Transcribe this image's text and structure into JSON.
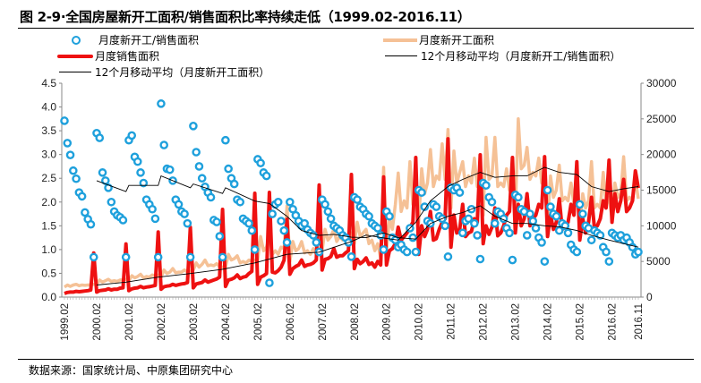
{
  "chart_data": {
    "type": "line",
    "title": "图 2-9·全国房屋新开工面积/销售面积比率持续走低（1999.02-2016.11）",
    "source": "数据来源：国家统计局、中原集团研究中心",
    "left_axis": {
      "range": [
        0,
        4.5
      ],
      "ticks": [
        "0.0",
        "0.5",
        "1.0",
        "1.5",
        "2.0",
        "2.5",
        "3.0",
        "3.5",
        "4.0",
        "4.5"
      ]
    },
    "right_axis": {
      "range": [
        0,
        30000
      ],
      "ticks": [
        "0",
        "5000",
        "10000",
        "15000",
        "20000",
        "25000",
        "30000"
      ]
    },
    "x_tick_labels": [
      "1999.02",
      "2000.02",
      "2001.02",
      "2002.02",
      "2003.02",
      "2004.02",
      "2005.02",
      "2006.02",
      "2007.02",
      "2008.02",
      "2009.02",
      "2010.02",
      "2011.02",
      "2012.02",
      "2013.02",
      "2014.02",
      "2015.02",
      "2016.02",
      "2016.11"
    ],
    "grid": false,
    "legend_placement": "top",
    "colors": {
      "ratio": "#1ea0dc",
      "starts": "#f5c196",
      "sales": "#ee1111",
      "ma": "#000000"
    },
    "months": [
      2,
      3,
      4,
      5,
      6,
      7,
      8,
      9,
      10,
      11,
      12
    ],
    "series": [
      {
        "key": "ratio",
        "name": "月度新开工/销售面积",
        "axis": "left",
        "style": "marker-circle"
      },
      {
        "key": "starts",
        "name": "月度新开工面积",
        "axis": "right",
        "style": "line"
      },
      {
        "key": "sales",
        "name": "月度销售面积",
        "axis": "right",
        "style": "line"
      },
      {
        "key": "ma_ratio",
        "name": "12个月移动平均（月度新开工/销售面积）",
        "axis": "left",
        "style": "thin-line"
      },
      {
        "key": "ma_starts",
        "name": "12个月移动平均（月度新开工面积）",
        "axis": "right",
        "style": "thin-line"
      }
    ],
    "monthly": [
      {
        "year": 1999,
        "ratio": [
          3.71,
          3.24,
          2.99,
          2.66,
          2.49,
          2.2,
          2.12,
          1.78,
          1.64,
          1.53,
          0.84
        ],
        "starts": [
          1400,
          1700,
          1500,
          1700,
          1800,
          1600,
          1700,
          1650,
          1700,
          1750,
          1800
        ],
        "sales": [
          500,
          650,
          700,
          700,
          800,
          750,
          800,
          850,
          900,
          1000,
          6190
        ]
      },
      {
        "year": 2000,
        "ratio": [
          3.45,
          3.35,
          2.62,
          2.45,
          2.3,
          2.0,
          1.8,
          1.72,
          1.68,
          1.62,
          0.84
        ],
        "starts": [
          1800,
          2400,
          2100,
          2300,
          2500,
          2200,
          2300,
          2200,
          2400,
          2400,
          2500
        ],
        "sales": [
          700,
          900,
          950,
          1000,
          1150,
          1000,
          1100,
          1100,
          1250,
          1300,
          7450
        ]
      },
      {
        "year": 2001,
        "ratio": [
          3.3,
          3.4,
          2.95,
          2.85,
          2.62,
          2.4,
          2.05,
          1.95,
          1.85,
          1.65,
          0.84
        ],
        "starts": [
          2300,
          3000,
          2700,
          2900,
          3200,
          2700,
          2900,
          2800,
          3100,
          3000,
          3100
        ],
        "sales": [
          900,
          1150,
          1250,
          1300,
          1500,
          1300,
          1400,
          1450,
          1550,
          1650,
          9120
        ]
      },
      {
        "year": 2002,
        "ratio": [
          4.07,
          3.2,
          2.7,
          2.68,
          2.45,
          2.05,
          1.95,
          1.8,
          1.75,
          1.55,
          0.84
        ],
        "starts": [
          2800,
          3800,
          3300,
          3500,
          4000,
          3400,
          3500,
          3500,
          3800,
          3500,
          3600
        ],
        "sales": [
          1100,
          1450,
          1550,
          1600,
          1800,
          1650,
          1750,
          1850,
          1900,
          2050,
          9790
        ]
      },
      {
        "year": 2003,
        "ratio": [
          3.6,
          3.05,
          2.75,
          2.5,
          2.32,
          2.2,
          2.1,
          1.62,
          1.58,
          1.28,
          0.84
        ],
        "starts": [
          3800,
          4800,
          4200,
          4600,
          5200,
          4400,
          4500,
          4400,
          4700,
          4300,
          4200
        ],
        "sales": [
          1300,
          1850,
          1950,
          2050,
          2400,
          2100,
          2250,
          2400,
          2550,
          2800,
          12300
        ]
      },
      {
        "year": 2004,
        "ratio": [
          3.3,
          2.7,
          2.5,
          2.38,
          2.05,
          2.0,
          1.65,
          1.6,
          1.55,
          1.4,
          1.0
        ],
        "starts": [
          4200,
          6000,
          5200,
          5400,
          5800,
          4800,
          5000,
          4800,
          5200,
          5000,
          5200
        ],
        "sales": [
          1500,
          2400,
          2500,
          2700,
          3100,
          2600,
          2800,
          2900,
          3300,
          3600,
          14560
        ]
      },
      {
        "year": 2005,
        "ratio": [
          2.9,
          2.82,
          2.62,
          2.55,
          0.3,
          1.75,
          1.95,
          2.0,
          1.6,
          1.4,
          1.15
        ],
        "starts": [
          5200,
          8500,
          6500,
          7000,
          8500,
          6000,
          6500,
          6000,
          7000,
          6800,
          12800
        ],
        "sales": [
          1800,
          2800,
          3000,
          3300,
          14690,
          3500,
          3400,
          3700,
          4200,
          5200,
          10920
        ]
      },
      {
        "year": 2006,
        "ratio": [
          2.0,
          1.85,
          1.72,
          1.6,
          1.5,
          1.55,
          1.42,
          1.35,
          1.3,
          1.15,
          0.95
        ],
        "starts": [
          5000,
          7800,
          6500,
          6800,
          7800,
          6200,
          6500,
          6000,
          6800,
          6000,
          6500
        ],
        "sales": [
          3200,
          4000,
          4300,
          4500,
          5200,
          4300,
          4500,
          4600,
          4800,
          5200,
          15730
        ]
      },
      {
        "year": 2007,
        "ratio": [
          2.05,
          1.95,
          1.8,
          1.65,
          1.5,
          1.45,
          1.4,
          1.3,
          1.25,
          1.15,
          0.85
        ],
        "starts": [
          6500,
          9500,
          8000,
          8500,
          9500,
          7800,
          8500,
          8000,
          8800,
          7500,
          9000
        ],
        "sales": [
          3800,
          5300,
          5400,
          5700,
          6800,
          5600,
          5800,
          5800,
          6200,
          6500,
          17200
        ]
      },
      {
        "year": 2008,
        "ratio": [
          2.1,
          2.05,
          1.9,
          1.85,
          1.75,
          1.7,
          1.55,
          1.5,
          1.45,
          1.3,
          1.0
        ],
        "starts": [
          7500,
          10500,
          8500,
          9000,
          9500,
          7500,
          8000,
          6500,
          7500,
          5500,
          18200
        ],
        "sales": [
          4000,
          5300,
          4700,
          5000,
          5500,
          4600,
          4800,
          4200,
          5000,
          4500,
          16860
        ]
      },
      {
        "year": 2009,
        "ratio": [
          1.8,
          1.7,
          1.25,
          1.2,
          1.05,
          1.1,
          1.0,
          0.95,
          1.45,
          1.25,
          0.95
        ],
        "starts": [
          6500,
          11000,
          9500,
          13000,
          17400,
          12000,
          13500,
          12500,
          19000,
          13000,
          17500
        ],
        "sales": [
          4500,
          6500,
          6800,
          7500,
          9800,
          8000,
          8500,
          9000,
          9800,
          10500,
          19580
        ]
      },
      {
        "year": 2010,
        "ratio": [
          2.25,
          2.2,
          1.9,
          1.6,
          1.55,
          1.95,
          1.9,
          1.7,
          1.65,
          1.5,
          0.85
        ],
        "starts": [
          10500,
          18000,
          14500,
          16000,
          20700,
          15500,
          17000,
          16500,
          21500,
          16500,
          23500
        ],
        "sales": [
          6000,
          10000,
          8500,
          9500,
          12000,
          8000,
          8200,
          9500,
          10500,
          11000,
          22200
        ]
      },
      {
        "year": 2011,
        "ratio": [
          2.3,
          2.25,
          2.3,
          2.2,
          1.35,
          1.6,
          1.65,
          1.85,
          1.55,
          1.3,
          0.8
        ],
        "starts": [
          12500,
          20500,
          16000,
          17500,
          19000,
          15500,
          17000,
          16000,
          19500,
          15500,
          18500
        ],
        "sales": [
          7000,
          11500,
          9000,
          9500,
          13000,
          8500,
          9000,
          9200,
          11000,
          10500,
          19960
        ]
      },
      {
        "year": 2012,
        "ratio": [
          2.4,
          2.35,
          2.1,
          2.0,
          1.55,
          1.8,
          1.75,
          1.65,
          1.45,
          1.35,
          0.78
        ],
        "starts": [
          11500,
          22400,
          16500,
          17000,
          22400,
          15500,
          16000,
          15500,
          18000,
          15000,
          17500
        ],
        "sales": [
          7500,
          10000,
          8800,
          9800,
          12500,
          8600,
          9000,
          10000,
          11500,
          12000,
          19580
        ]
      },
      {
        "year": 2013,
        "ratio": [
          2.15,
          2.1,
          1.85,
          1.8,
          1.3,
          1.75,
          1.6,
          1.45,
          1.25,
          1.15,
          0.75
        ],
        "starts": [
          12000,
          25000,
          18000,
          18500,
          21000,
          16500,
          17500,
          17000,
          19500,
          16000,
          17000
        ],
        "sales": [
          9000,
          13000,
          10000,
          11000,
          14500,
          10000,
          11000,
          11500,
          13000,
          12500,
          19700
        ]
      },
      {
        "year": 2014,
        "ratio": [
          2.25,
          1.9,
          1.75,
          1.7,
          1.4,
          1.55,
          1.5,
          1.35,
          1.1,
          1.0,
          0.95
        ],
        "starts": [
          10500,
          17000,
          14000,
          15000,
          18500,
          13500,
          14000,
          13500,
          16000,
          13000,
          14500
        ],
        "sales": [
          8500,
          11500,
          9500,
          10500,
          13800,
          9500,
          9800,
          10500,
          13000,
          11500,
          18990
        ]
      },
      {
        "year": 2015,
        "ratio": [
          1.95,
          1.75,
          1.5,
          1.45,
          1.2,
          1.4,
          1.35,
          1.3,
          1.05,
          0.95,
          0.75
        ],
        "starts": [
          10000,
          14500,
          12500,
          13500,
          19000,
          12500,
          13000,
          12500,
          17500,
          13000,
          14000
        ],
        "sales": [
          8000,
          11000,
          9000,
          10500,
          14000,
          9800,
          10000,
          11000,
          13500,
          12500,
          19200
        ]
      },
      {
        "year": 2016,
        "ratio": [
          1.35,
          1.3,
          1.25,
          1.3,
          1.2,
          1.25,
          1.15,
          1.05,
          0.9,
          0.95
        ],
        "starts": [
          11000,
          16000,
          14000,
          14500,
          19700,
          13500,
          14000,
          13500,
          16500,
          13800
        ],
        "sales": [
          10500,
          14500,
          12000,
          13500,
          16500,
          12000,
          12500,
          13500,
          17700,
          15300
        ]
      }
    ],
    "ma_ratio": [
      [
        "2000.02",
        2.45
      ],
      [
        "2000.12",
        2.22
      ],
      [
        "2001.02",
        2.35
      ],
      [
        "2001.12",
        2.35
      ],
      [
        "2002.02",
        2.55
      ],
      [
        "2002.12",
        2.3
      ],
      [
        "2003.02",
        2.38
      ],
      [
        "2003.12",
        2.18
      ],
      [
        "2004.02",
        2.3
      ],
      [
        "2004.12",
        2.02
      ],
      [
        "2005.06",
        1.97
      ],
      [
        "2005.12",
        1.7
      ],
      [
        "2006.06",
        1.4
      ],
      [
        "2006.12",
        1.3
      ],
      [
        "2007.06",
        1.32
      ],
      [
        "2007.12",
        1.26
      ],
      [
        "2008.06",
        1.25
      ],
      [
        "2008.12",
        1.35
      ],
      [
        "2009.06",
        1.25
      ],
      [
        "2009.12",
        1.22
      ],
      [
        "2010.06",
        1.55
      ],
      [
        "2010.12",
        1.7
      ],
      [
        "2011.06",
        1.78
      ],
      [
        "2011.12",
        1.92
      ],
      [
        "2012.06",
        1.7
      ],
      [
        "2012.12",
        1.55
      ],
      [
        "2013.06",
        1.55
      ],
      [
        "2013.12",
        1.5
      ],
      [
        "2014.06",
        1.48
      ],
      [
        "2014.12",
        1.4
      ],
      [
        "2015.06",
        1.3
      ],
      [
        "2015.12",
        1.2
      ],
      [
        "2016.11",
        1.05
      ]
    ],
    "ma_starts": [
      [
        "2000.02",
        1700
      ],
      [
        "2000.12",
        2100
      ],
      [
        "2001.12",
        2800
      ],
      [
        "2002.12",
        3300
      ],
      [
        "2003.12",
        3900
      ],
      [
        "2004.12",
        4800
      ],
      [
        "2005.12",
        6000
      ],
      [
        "2006.12",
        6300
      ],
      [
        "2007.12",
        7800
      ],
      [
        "2008.06",
        8700
      ],
      [
        "2008.12",
        8300
      ],
      [
        "2009.06",
        8000
      ],
      [
        "2009.12",
        10500
      ],
      [
        "2010.06",
        13500
      ],
      [
        "2010.12",
        15500
      ],
      [
        "2011.06",
        16500
      ],
      [
        "2011.12",
        17500
      ],
      [
        "2012.06",
        16800
      ],
      [
        "2012.12",
        17000
      ],
      [
        "2013.06",
        17000
      ],
      [
        "2013.12",
        18200
      ],
      [
        "2014.06",
        17500
      ],
      [
        "2014.12",
        17200
      ],
      [
        "2015.06",
        15500
      ],
      [
        "2015.12",
        14800
      ],
      [
        "2016.06",
        15200
      ],
      [
        "2016.11",
        15500
      ]
    ]
  }
}
